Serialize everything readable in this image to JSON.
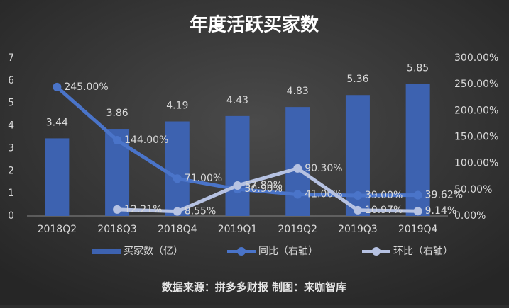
{
  "chart_data": {
    "type": "bar_line",
    "title": "年度活跃买家数",
    "categories": [
      "2018Q2",
      "2018Q3",
      "2018Q4",
      "2019Q1",
      "2019Q2",
      "2019Q3",
      "2019Q4"
    ],
    "series": [
      {
        "name": "买家数（亿）",
        "type": "bar",
        "color": "#3d62b0",
        "values": [
          3.44,
          3.86,
          4.19,
          4.43,
          4.83,
          5.36,
          5.85
        ]
      },
      {
        "name": "同比（右轴）",
        "type": "line",
        "axis": "y2",
        "color": "#4a74c9",
        "values": [
          245,
          144,
          71,
          50.9,
          41,
          39,
          39.62
        ],
        "value_labels": [
          "245.00%",
          "144.00%",
          "71.00%",
          "50.90%",
          "41.00%",
          "39.00%",
          "39.62%"
        ]
      },
      {
        "name": "环比（右轴）",
        "type": "line",
        "axis": "y2",
        "color": "#b6c2e2",
        "values": [
          null,
          12.21,
          8.55,
          57.8,
          90.3,
          10.97,
          9.14
        ],
        "value_labels": [
          null,
          "12.21%",
          "8.55%",
          "57.80%",
          "90.30%",
          "10.97%",
          "9.14%"
        ]
      }
    ],
    "ylim": [
      0,
      7
    ],
    "yticks": [
      0,
      1,
      2,
      3,
      4,
      5,
      6,
      7
    ],
    "y2lim": [
      0,
      300
    ],
    "y2ticks": [
      {
        "value": 0,
        "label": "0.00%"
      },
      {
        "value": 50,
        "label": "50.00%"
      },
      {
        "value": 100,
        "label": "100.00%"
      },
      {
        "value": 150,
        "label": "150.00%"
      },
      {
        "value": 200,
        "label": "200.00%"
      },
      {
        "value": 250,
        "label": "250.00%"
      },
      {
        "value": 300,
        "label": "300.00%"
      }
    ],
    "source": "数据来源：拼多多财报 制图：来咖智库"
  }
}
